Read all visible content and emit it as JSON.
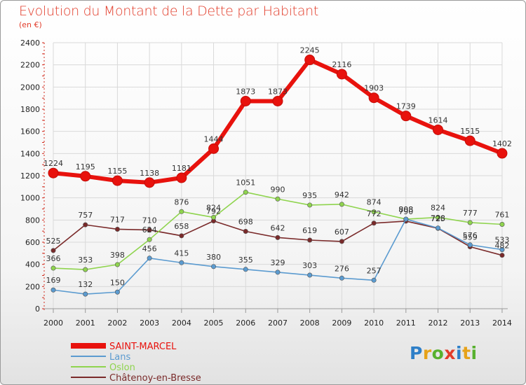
{
  "title": "Evolution du Montant de la Dette par Habitant",
  "subtitle": "(en €)",
  "logo": {
    "text": "Proxiti"
  },
  "chart_data": {
    "type": "line",
    "title": "Evolution du Montant de la Dette par Habitant",
    "subtitle": "(en €)",
    "x": [
      "2000",
      "2001",
      "2002",
      "2003",
      "2004",
      "2005",
      "2006",
      "2007",
      "2008",
      "2009",
      "2010",
      "2011",
      "2012",
      "2013",
      "2014"
    ],
    "ylim": [
      0,
      2400
    ],
    "yticks": [
      0,
      200,
      400,
      600,
      800,
      1000,
      1200,
      1400,
      1600,
      1800,
      2000,
      2200,
      2400
    ],
    "grid": true,
    "legend_position": "bottom-left",
    "series": [
      {
        "name": "SAINT-MARCEL",
        "color": "#e8120d",
        "values": [
          1224,
          1195,
          1155,
          1138,
          1181,
          1444,
          1873,
          1873,
          2245,
          2116,
          1903,
          1739,
          1614,
          1515,
          1402
        ]
      },
      {
        "name": "Lans",
        "color": "#5b9bd0",
        "values": [
          169,
          132,
          150,
          456,
          415,
          380,
          355,
          329,
          303,
          276,
          257,
          808,
          728,
          576,
          533
        ]
      },
      {
        "name": "Oslon",
        "color": "#8fd44e",
        "values": [
          366,
          353,
          398,
          624,
          876,
          824,
          1051,
          990,
          935,
          942,
          874,
          808,
          824,
          777,
          761
        ]
      },
      {
        "name": "Châtenoy-en-Bresse",
        "color": "#7a2a2a",
        "values": [
          525,
          757,
          717,
          710,
          658,
          792,
          698,
          642,
          619,
          607,
          772,
          790,
          725,
          559,
          482
        ]
      }
    ],
    "point_labels": [
      {
        "series": 0,
        "values": [
          "1224",
          "1195",
          "1155",
          "1138",
          "1181",
          "1444",
          "1873",
          "1873",
          "2245",
          "2116",
          "1903",
          "1739",
          "1614",
          "1515",
          "1402"
        ]
      },
      {
        "series": 1,
        "values": [
          "169",
          "132",
          "150",
          "456",
          "415",
          "380",
          "355",
          "329",
          "303",
          "276",
          "257",
          "808",
          "728",
          "576",
          "533"
        ]
      },
      {
        "series": 2,
        "values": [
          "366",
          "353",
          "398",
          "624",
          "876",
          "824",
          "1051",
          "990",
          "935",
          "942",
          "874",
          "808",
          "824",
          "777",
          "761"
        ]
      },
      {
        "series": 3,
        "values": [
          "525",
          "757",
          "717",
          "710",
          "658",
          "792",
          "698",
          "642",
          "619",
          "607",
          "772",
          "790",
          "725",
          "559",
          "482"
        ]
      }
    ]
  }
}
